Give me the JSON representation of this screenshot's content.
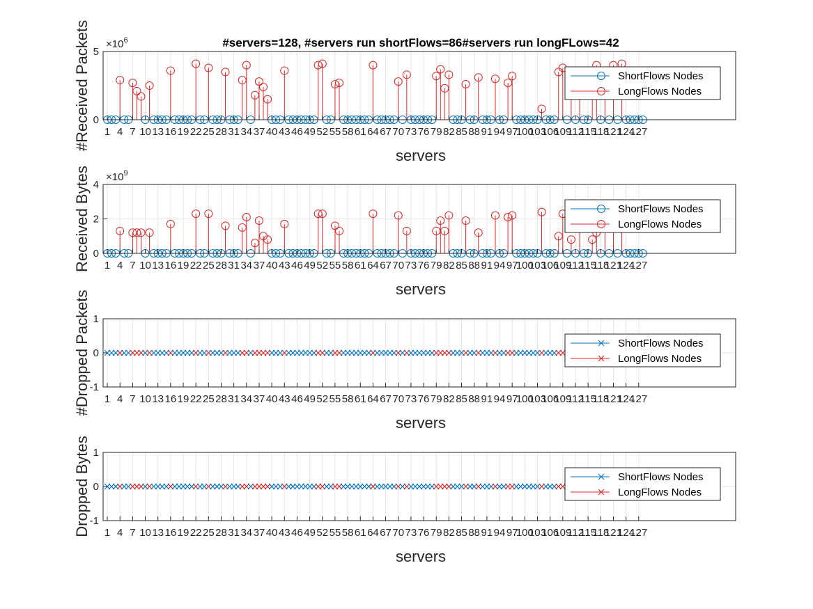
{
  "chart_data": [
    {
      "type": "stem",
      "title": "#servers=128,  #servers run shortFlows=86#servers run longFLows=42",
      "xlabel": "servers",
      "ylabel": "#Received Packets",
      "ylim": [
        0,
        5
      ],
      "exponent": "6",
      "yticks": [
        "0",
        "5"
      ],
      "marker": "o",
      "legend_location": "top-right",
      "series": [
        {
          "name": "ShortFlows Nodes",
          "color": "#0072BD"
        },
        {
          "name": "LongFlows Nodes",
          "color": "#D62728"
        }
      ]
    },
    {
      "type": "stem",
      "xlabel": "servers",
      "ylabel": "Received Bytes",
      "ylim": [
        0,
        4
      ],
      "exponent": "9",
      "yticks": [
        "0",
        "2",
        "4"
      ],
      "marker": "o",
      "legend_location": "top-right",
      "series": [
        {
          "name": "ShortFlows Nodes",
          "color": "#0072BD"
        },
        {
          "name": "LongFlows Nodes",
          "color": "#D62728"
        }
      ]
    },
    {
      "type": "stem",
      "xlabel": "servers",
      "ylabel": "#Dropped Packets",
      "ylim": [
        -1,
        1
      ],
      "yticks": [
        "-1",
        "0",
        "1"
      ],
      "marker": "x",
      "legend_location": "top-right",
      "series": [
        {
          "name": "ShortFlows Nodes",
          "color": "#0072BD"
        },
        {
          "name": "LongFlows Nodes",
          "color": "#D62728"
        }
      ]
    },
    {
      "type": "stem",
      "xlabel": "servers",
      "ylabel": "Dropped Bytes",
      "ylim": [
        -1,
        1
      ],
      "yticks": [
        "-1",
        "0",
        "1"
      ],
      "marker": "x",
      "legend_location": "top-right",
      "series": [
        {
          "name": "ShortFlows Nodes",
          "color": "#0072BD"
        },
        {
          "name": "LongFlows Nodes",
          "color": "#D62728"
        }
      ]
    }
  ],
  "shared": {
    "xlim": [
      0,
      150
    ],
    "xtick_labels": [
      "1",
      "4",
      "7",
      "10",
      "13",
      "16",
      "19",
      "22",
      "25",
      "28",
      "31",
      "34",
      "37",
      "40",
      "43",
      "46",
      "49",
      "52",
      "55",
      "58",
      "61",
      "64",
      "67",
      "70",
      "73",
      "76",
      "79",
      "82",
      "85",
      "88",
      "91",
      "94",
      "97",
      "100",
      "103",
      "106",
      "109",
      "112",
      "115",
      "118",
      "121",
      "124",
      "127"
    ],
    "long_servers": [
      4,
      7,
      8,
      9,
      11,
      16,
      22,
      25,
      29,
      33,
      34,
      36,
      37,
      38,
      39,
      43,
      51,
      52,
      55,
      56,
      64,
      70,
      72,
      79,
      80,
      81,
      82,
      86,
      89,
      93,
      96,
      97,
      104,
      108,
      109,
      111,
      113,
      116,
      117,
      119,
      121,
      123
    ],
    "received_packets_long": [
      2.9,
      2.7,
      2.1,
      1.7,
      2.5,
      3.6,
      4.1,
      3.8,
      3.5,
      2.9,
      4.0,
      1.8,
      2.8,
      2.4,
      1.5,
      3.6,
      4.0,
      4.1,
      2.6,
      2.7,
      4.0,
      2.8,
      3.3,
      3.2,
      3.7,
      2.3,
      3.3,
      2.6,
      3.1,
      3.0,
      2.7,
      3.2,
      0.8,
      3.5,
      3.8,
      2.1,
      2.3,
      2.9,
      4.0,
      3.1,
      4.0,
      4.1
    ],
    "received_bytes_long": [
      1.3,
      1.2,
      1.2,
      1.2,
      1.2,
      1.7,
      2.3,
      2.3,
      1.6,
      1.5,
      2.1,
      0.6,
      1.9,
      1.0,
      0.8,
      1.7,
      2.3,
      2.3,
      1.6,
      1.3,
      2.3,
      2.2,
      1.3,
      1.3,
      1.9,
      1.3,
      2.2,
      1.9,
      1.2,
      2.2,
      2.1,
      2.2,
      2.4,
      1.0,
      2.3,
      0.8,
      1.8,
      0.8,
      1.2,
      2.3,
      2.1,
      2.3
    ],
    "dropped_packets_all": 0,
    "dropped_bytes_all": 0
  }
}
